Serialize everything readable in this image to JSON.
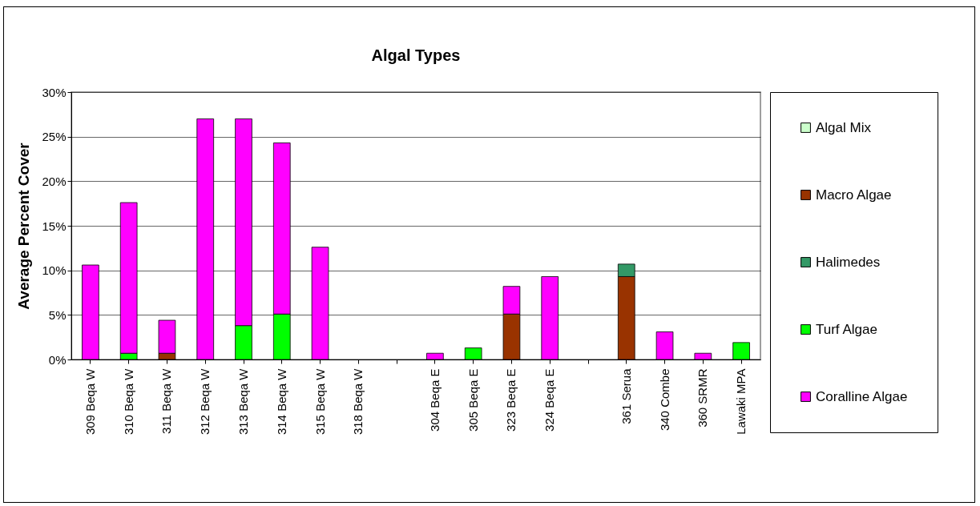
{
  "chart_data": {
    "type": "bar",
    "title": "Algal Types",
    "ylabel": "Average Percent Cover",
    "stacked": true,
    "legend": "right",
    "grid": "y",
    "categories": [
      "309 Beqa W",
      "310 Beqa W",
      "311 Beqa W",
      "312 Beqa W",
      "313 Beqa W",
      "314 Beqa W",
      "315 Beqa W",
      "318 Beqa W",
      null,
      "304 Beqa E",
      "305 Beqa E",
      "323 Beqa E",
      "324 Beqa E",
      null,
      "361 Serua",
      "340 Combe",
      "360 SRMR",
      "Lawaki MPA"
    ],
    "ylim": [
      0,
      30
    ],
    "yticks": [
      {
        "value": 0,
        "label": "0%"
      },
      {
        "value": 5,
        "label": "5%"
      },
      {
        "value": 10,
        "label": "10%"
      },
      {
        "value": 15,
        "label": "15%"
      },
      {
        "value": 20,
        "label": "20%"
      },
      {
        "value": 25,
        "label": "25%"
      },
      {
        "value": 30,
        "label": "30%"
      }
    ],
    "series": [
      {
        "name": "Algal Mix",
        "color": "#ccffcc",
        "values": [
          0,
          0,
          0,
          0,
          0,
          0,
          0,
          0,
          null,
          0,
          0,
          0,
          0,
          null,
          0,
          0,
          0,
          0
        ]
      },
      {
        "name": "Macro Algae",
        "color": "#993300",
        "values": [
          0,
          0,
          0.7,
          0,
          0,
          0,
          0,
          0,
          null,
          0,
          0,
          5.1,
          0,
          null,
          9.3,
          0,
          0,
          0
        ]
      },
      {
        "name": "Halimedes",
        "color": "#339966",
        "values": [
          0,
          0,
          0,
          0,
          0,
          0,
          0,
          0,
          null,
          0,
          0,
          0,
          0,
          null,
          1.4,
          0,
          0,
          0
        ]
      },
      {
        "name": "Turf Algae",
        "color": "#00ff00",
        "values": [
          0,
          0.7,
          0,
          0,
          3.8,
          5.1,
          0,
          0,
          null,
          0,
          1.3,
          0,
          0,
          null,
          0,
          0,
          0,
          1.9
        ]
      },
      {
        "name": "Coralline Algae",
        "color": "#ff00ff",
        "values": [
          10.6,
          16.9,
          3.7,
          27.0,
          23.2,
          19.2,
          12.6,
          0,
          null,
          0.7,
          0,
          3.1,
          9.3,
          null,
          0,
          3.1,
          0.7,
          0
        ]
      }
    ]
  }
}
